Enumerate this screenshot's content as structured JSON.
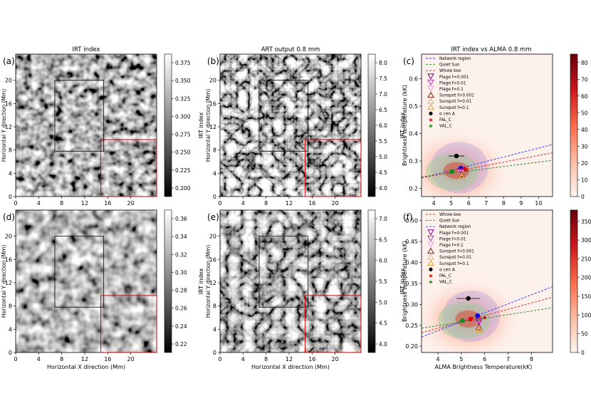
{
  "figure": {
    "panels": [
      {
        "id": "a",
        "letter": "(a)",
        "title": "IRT index",
        "ylabel": "Horizontal Y direction (Mm)",
        "xlabel": "",
        "xticks": [
          "0",
          "4",
          "8",
          "12",
          "16",
          "20"
        ],
        "yticks": [
          "0",
          "4",
          "8",
          "12",
          "16",
          "20"
        ],
        "cbar_label": "IRT index",
        "cbar_ticks": [
          "0.200",
          "0.225",
          "0.250",
          "0.275",
          "0.300",
          "0.325",
          "0.350",
          "0.375"
        ]
      },
      {
        "id": "b",
        "letter": "(b)",
        "title": "ART output 0.8 mm",
        "ylabel": "Horizontal Y direction (Mm)",
        "xlabel": "",
        "xticks": [
          "0",
          "4",
          "8",
          "12",
          "16",
          "20"
        ],
        "yticks": [
          "0",
          "4",
          "8",
          "12",
          "16",
          "20"
        ],
        "cbar_label": "Brightness temperature (kK)",
        "cbar_ticks": [
          "4.0",
          "4.5",
          "5.0",
          "5.5",
          "6.0",
          "6.5",
          "7.0",
          "7.5",
          "8.0"
        ]
      },
      {
        "id": "d",
        "letter": "(d)",
        "title": "",
        "ylabel": "Horizontal Y direction (Mm)",
        "xlabel": "Horizontal X direction (Mm)",
        "xticks": [
          "0",
          "4",
          "8",
          "12",
          "16",
          "20"
        ],
        "yticks": [
          "0",
          "4",
          "8",
          "12",
          "16",
          "20"
        ],
        "cbar_label": "IRT index",
        "cbar_ticks": [
          "0.22",
          "0.24",
          "0.26",
          "0.28",
          "0.30",
          "0.32",
          "0.34",
          "0.36"
        ]
      },
      {
        "id": "e",
        "letter": "(e)",
        "title": "",
        "ylabel": "Horizontal Y direction (Mm)",
        "xlabel": "Horizontal X direction (Mm)",
        "xticks": [
          "0",
          "4",
          "8",
          "12",
          "16",
          "20"
        ],
        "yticks": [
          "0",
          "4",
          "8",
          "12",
          "16",
          "20"
        ],
        "cbar_label": "Brightness temperature (kK)",
        "cbar_ticks": [
          "4.0",
          "4.5",
          "5.0",
          "5.5",
          "6.0",
          "6.5",
          "7.0"
        ]
      }
    ],
    "scatter_panels": [
      {
        "id": "c",
        "letter": "(c)",
        "title": "IRT index vs ALMA 0.8 mm",
        "ylabel": "IRT index",
        "xlabel": "",
        "xticks": [
          "4",
          "5",
          "6",
          "7",
          "8",
          "9",
          "10"
        ],
        "yticks": [
          "0.2",
          "0.3",
          "0.4",
          "0.5",
          "0.6"
        ],
        "cbar_ticks": [
          "0",
          "10",
          "20",
          "30",
          "40",
          "50",
          "60",
          "70",
          "80"
        ],
        "legend": [
          "Network region",
          "Quiet Sun",
          "Whole box",
          "Plage f=0.001",
          "Plage f=0.01",
          "Plage f=0.1",
          "Sunspot f=0.001",
          "Sunspot f=0.01",
          "Sunspot f=0.1",
          "α cen A",
          "FAL_C",
          "VAL_C"
        ]
      },
      {
        "id": "f",
        "letter": "(f)",
        "title": "",
        "ylabel": "IRT index",
        "xlabel": "ALMA Brightness Temperature(kK)",
        "xticks": [
          "4",
          "5",
          "6",
          "7",
          "8"
        ],
        "yticks": [
          "0.20",
          "0.25",
          "0.30",
          "0.35",
          "0.40",
          "0.45",
          "0.50"
        ],
        "cbar_ticks": [
          "0",
          "50",
          "100",
          "150",
          "200",
          "250",
          "300",
          "350"
        ],
        "legend": [
          "Whole box",
          "Quiet Sun",
          "Network region",
          "Plage f=0.001",
          "Plage f=0.01",
          "Plage f=0.1",
          "Sunspot f=0.001",
          "Sunspot f=0.01",
          "Sunspot f=0.1",
          "α cen A",
          "FAL_C",
          "VAL_C"
        ]
      }
    ]
  },
  "chart_data": [
    {
      "type": "scatter",
      "panel": "c",
      "title": "IRT index vs ALMA 0.8 mm",
      "xlabel": "",
      "ylabel": "IRT index",
      "xlim": [
        3.3,
        10.8
      ],
      "ylim": [
        0.17,
        0.69
      ],
      "colorbar": {
        "range": [
          0,
          85
        ],
        "colormap": "Reds"
      },
      "fit_lines": [
        {
          "name": "Network region",
          "color": "#3b3bff",
          "x": [
            3.3,
            10.8
          ],
          "y": [
            0.238,
            0.36
          ]
        },
        {
          "name": "Quiet Sun",
          "color": "#2e8b2e",
          "x": [
            3.3,
            10.8
          ],
          "y": [
            0.242,
            0.302
          ]
        },
        {
          "name": "Whole box",
          "color": "#e03030",
          "x": [
            3.3,
            10.8
          ],
          "y": [
            0.238,
            0.33
          ]
        }
      ],
      "points": [
        {
          "name": "Plage f=0.001",
          "marker": "triangle-down",
          "color": "#8b008b",
          "x": 5.55,
          "y": 0.262
        },
        {
          "name": "Plage f=0.01",
          "marker": "triangle-down",
          "color": "#b03cb0",
          "x": 5.55,
          "y": 0.258
        },
        {
          "name": "Plage f=0.1",
          "marker": "triangle-down",
          "color": "#e6a0e6",
          "x": 5.55,
          "y": 0.255
        },
        {
          "name": "Sunspot f=0.001",
          "marker": "triangle-up",
          "color": "#8b1a1a",
          "x": 5.6,
          "y": 0.252
        },
        {
          "name": "Sunspot f=0.01",
          "marker": "triangle-up",
          "color": "#d2b48c",
          "x": 5.6,
          "y": 0.248
        },
        {
          "name": "Sunspot f=0.1",
          "marker": "triangle-up",
          "color": "#e8a020",
          "x": 5.6,
          "y": 0.244
        },
        {
          "name": "α cen A",
          "marker": "circle",
          "color": "#000000",
          "x": 5.3,
          "y": 0.318,
          "xerr": 0.45
        },
        {
          "name": "FAL_C",
          "marker": "star",
          "color": "#e00000",
          "x": 5.85,
          "y": 0.268
        },
        {
          "name": "VAL_C",
          "marker": "star",
          "color": "#1a8a1a",
          "x": 4.95,
          "y": 0.258
        }
      ],
      "extra_markers": [
        {
          "marker": "circle",
          "color": "#0000ee",
          "x": 5.55,
          "y": 0.274
        },
        {
          "marker": "circle",
          "color": "#e00000",
          "x": 5.75,
          "y": 0.27
        },
        {
          "marker": "circle",
          "color": "#1a8a1a",
          "x": 5.05,
          "y": 0.262
        }
      ]
    },
    {
      "type": "scatter",
      "panel": "f",
      "title": "",
      "xlabel": "ALMA Brightness Temperature(kK)",
      "ylabel": "IRT index",
      "xlim": [
        3.3,
        8.9
      ],
      "ylim": [
        0.185,
        0.525
      ],
      "colorbar": {
        "range": [
          0,
          380
        ],
        "colormap": "Reds"
      },
      "fit_lines": [
        {
          "name": "Whole box",
          "color": "#e03030",
          "x": [
            3.3,
            8.9
          ],
          "y": [
            0.232,
            0.317
          ]
        },
        {
          "name": "Quiet Sun",
          "color": "#2e8b2e",
          "x": [
            3.3,
            8.9
          ],
          "y": [
            0.243,
            0.292
          ]
        },
        {
          "name": "Network region",
          "color": "#3b3bff",
          "x": [
            3.3,
            8.9
          ],
          "y": [
            0.222,
            0.342
          ]
        }
      ],
      "points": [
        {
          "name": "Plage f=0.001",
          "marker": "triangle-down",
          "color": "#8b008b",
          "x": 5.75,
          "y": 0.26
        },
        {
          "name": "Plage f=0.01",
          "marker": "triangle-down",
          "color": "#b03cb0",
          "x": 5.75,
          "y": 0.255
        },
        {
          "name": "Plage f=0.1",
          "marker": "triangle-down",
          "color": "#e6a0e6",
          "x": 5.75,
          "y": 0.25
        },
        {
          "name": "Sunspot f=0.001",
          "marker": "triangle-up",
          "color": "#8b1a1a",
          "x": 5.75,
          "y": 0.246
        },
        {
          "name": "Sunspot f=0.01",
          "marker": "triangle-up",
          "color": "#d2b48c",
          "x": 5.75,
          "y": 0.243
        },
        {
          "name": "Sunspot f=0.1",
          "marker": "triangle-up",
          "color": "#e8a020",
          "x": 5.75,
          "y": 0.24
        },
        {
          "name": "α cen A",
          "marker": "circle",
          "color": "#000000",
          "x": 5.3,
          "y": 0.314,
          "xerr": 0.5
        },
        {
          "name": "FAL_C",
          "marker": "star",
          "color": "#e00000",
          "x": 6.0,
          "y": 0.268
        },
        {
          "name": "VAL_C",
          "marker": "star",
          "color": "#1a8a1a",
          "x": 5.0,
          "y": 0.26
        }
      ],
      "extra_markers": [
        {
          "marker": "circle",
          "color": "#0000ee",
          "x": 5.7,
          "y": 0.273
        },
        {
          "marker": "circle",
          "color": "#e00000",
          "x": 5.4,
          "y": 0.265
        },
        {
          "marker": "circle",
          "color": "#1a8a1a",
          "x": 5.05,
          "y": 0.261
        }
      ]
    }
  ]
}
